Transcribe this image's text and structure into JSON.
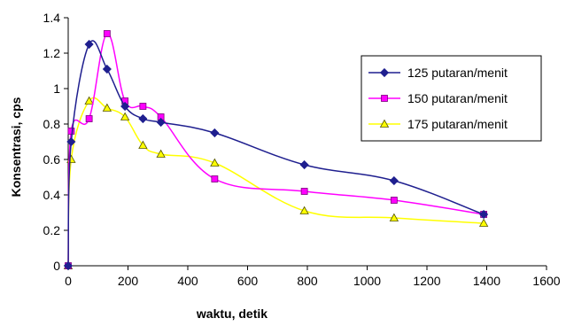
{
  "chart_data": {
    "type": "line",
    "title": "",
    "xlabel": "waktu, detik",
    "ylabel": "Konsentrasi, cps",
    "xlim": [
      0,
      1600
    ],
    "ylim": [
      0,
      1.4
    ],
    "xticks": [
      0,
      200,
      400,
      600,
      800,
      1000,
      1200,
      1400,
      1600
    ],
    "yticks": [
      0,
      0.2,
      0.4,
      0.6,
      0.8,
      1,
      1.2,
      1.4
    ],
    "grid": false,
    "legend_position": "right",
    "series": [
      {
        "name": "125 putaran/menit",
        "color": "#1f1f8f",
        "marker": "diamond",
        "x": [
          0,
          10,
          70,
          130,
          190,
          250,
          310,
          490,
          790,
          1090,
          1390
        ],
        "y": [
          0,
          0.7,
          1.25,
          1.11,
          0.9,
          0.83,
          0.81,
          0.75,
          0.57,
          0.48,
          0.29
        ]
      },
      {
        "name": "150 putaran/menit",
        "color": "#ff00ff",
        "marker": "square",
        "x": [
          0,
          10,
          70,
          130,
          190,
          250,
          310,
          490,
          790,
          1090,
          1390
        ],
        "y": [
          0,
          0.76,
          0.83,
          1.31,
          0.93,
          0.9,
          0.84,
          0.49,
          0.42,
          0.37,
          0.29
        ]
      },
      {
        "name": "175 putaran/menit",
        "color": "#ffff00",
        "marker": "triangle",
        "x": [
          0,
          10,
          70,
          130,
          190,
          250,
          310,
          490,
          790,
          1090,
          1390
        ],
        "y": [
          0,
          0.6,
          0.93,
          0.89,
          0.84,
          0.68,
          0.63,
          0.58,
          0.31,
          0.27,
          0.24
        ]
      }
    ]
  }
}
